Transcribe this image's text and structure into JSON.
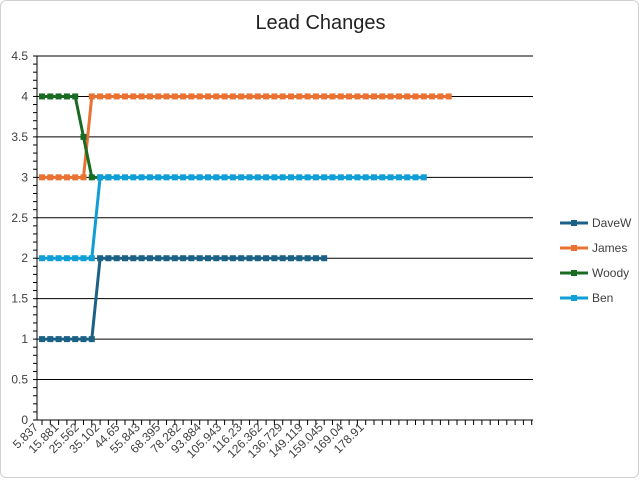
{
  "chart_data": {
    "type": "line",
    "title": "Lead Changes",
    "xlabel": "",
    "ylabel": "",
    "ylim": [
      0,
      4.5
    ],
    "y_ticks": [
      "0",
      "0.5",
      "1",
      "1.5",
      "2",
      "2.5",
      "3",
      "3.5",
      "4",
      "4.5"
    ],
    "x_tick_labels": [
      "5.837",
      "15.881",
      "25.562",
      "35.102",
      "44.65",
      "55.843",
      "68.395",
      "78.282",
      "93.884",
      "105.943",
      "116.23",
      "126.362",
      "136.729",
      "149.119",
      "159.045",
      "169.04",
      "178.91"
    ],
    "grid": true,
    "legend_position": "right",
    "series": [
      {
        "name": "DaveW",
        "color": "#1B6186",
        "values": [
          1,
          1,
          1,
          1,
          1,
          1,
          1,
          2,
          2,
          2,
          2,
          2,
          2,
          2,
          2,
          2,
          2,
          2,
          2,
          2,
          2,
          2,
          2,
          2,
          2,
          2,
          2,
          2,
          2,
          2,
          2,
          2,
          2,
          2,
          2
        ]
      },
      {
        "name": "James",
        "color": "#E97132",
        "values": [
          3,
          3,
          3,
          3,
          3,
          3,
          4,
          4,
          4,
          4,
          4,
          4,
          4,
          4,
          4,
          4,
          4,
          4,
          4,
          4,
          4,
          4,
          4,
          4,
          4,
          4,
          4,
          4,
          4,
          4,
          4,
          4,
          4,
          4,
          4,
          4,
          4,
          4,
          4,
          4,
          4,
          4,
          4,
          4,
          4,
          4,
          4,
          4,
          4,
          4
        ]
      },
      {
        "name": "Woody",
        "color": "#196B24",
        "values": [
          4,
          4,
          4,
          4,
          4,
          3.5,
          3,
          3,
          3
        ]
      },
      {
        "name": "Ben",
        "color": "#0F9ED5",
        "values": [
          2,
          2,
          2,
          2,
          2,
          2,
          2,
          3,
          3,
          3,
          3,
          3,
          3,
          3,
          3,
          3,
          3,
          3,
          3,
          3,
          3,
          3,
          3,
          3,
          3,
          3,
          3,
          3,
          3,
          3,
          3,
          3,
          3,
          3,
          3,
          3,
          3,
          3,
          3,
          3,
          3,
          3,
          3,
          3,
          3,
          3,
          3
        ]
      }
    ]
  }
}
